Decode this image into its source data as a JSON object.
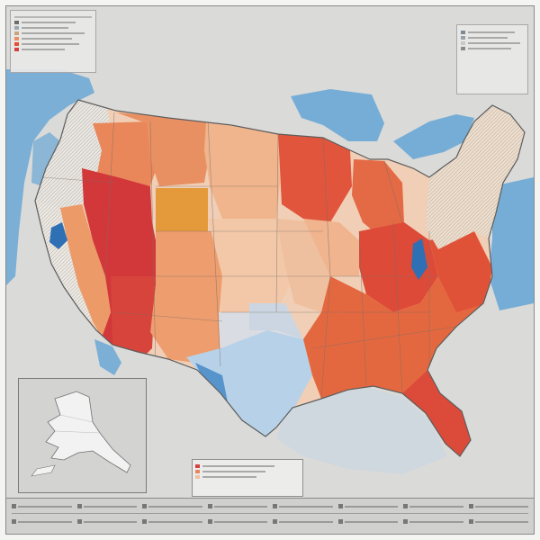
{
  "map": {
    "colors": {
      "water": "#6aa7d6",
      "land_bg": "#d9d9d7",
      "dark_red": "#d2383a",
      "red": "#dd5a3c",
      "orange_red": "#e57a4e",
      "orange": "#ec9a68",
      "light_orange": "#f0b58c",
      "peach": "#f2cbb0",
      "pale": "#efe6da",
      "wyoming": "#e49a3a",
      "light_blue": "#9fc6e4",
      "blue": "#3f84c4",
      "border": "#6e6e6e"
    },
    "legend_top_left": {
      "swatches": [
        "#6c6c6c",
        "#9aa6b0",
        "#c9a27e",
        "#e88d62",
        "#e0502f",
        "#d84040"
      ]
    },
    "legend_top_right": {
      "swatches": [
        "#7b8a96",
        "#9aa0a6",
        "#c9c9c9",
        "#8a8a8a"
      ]
    },
    "scale_legend": {
      "swatches": [
        "#d84040",
        "#e9875a",
        "#f0c1a0"
      ]
    },
    "bottom_bar": {
      "row_count": 2,
      "cells_per_row": 8
    }
  }
}
